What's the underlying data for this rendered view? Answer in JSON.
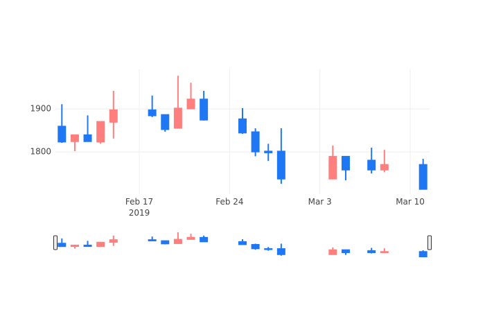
{
  "chart_data": {
    "type": "candlestick",
    "x": [
      "2019-02-11",
      "2019-02-12",
      "2019-02-13",
      "2019-02-14",
      "2019-02-15",
      "2019-02-18",
      "2019-02-19",
      "2019-02-20",
      "2019-02-21",
      "2019-02-22",
      "2019-02-25",
      "2019-02-26",
      "2019-02-27",
      "2019-02-28",
      "2019-03-04",
      "2019-03-05",
      "2019-03-07",
      "2019-03-08",
      "2019-03-11"
    ],
    "open": [
      1823,
      1840,
      1824,
      1871,
      1898,
      1884,
      1852,
      1902,
      1923,
      1874,
      1844,
      1800,
      1798,
      1737,
      1790,
      1758,
      1758,
      1771,
      1713
    ],
    "high": [
      1911,
      1840,
      1885,
      1871,
      1942,
      1931,
      1887,
      1977,
      1961,
      1942,
      1902,
      1855,
      1819,
      1855,
      1815,
      1790,
      1810,
      1805,
      1784
    ],
    "low": [
      1821,
      1802,
      1824,
      1819,
      1831,
      1881,
      1847,
      1855,
      1900,
      1873,
      1842,
      1790,
      1779,
      1726,
      1737,
      1734,
      1750,
      1753,
      1713
    ],
    "close": [
      1860,
      1824,
      1840,
      1823,
      1869,
      1898,
      1887,
      1855,
      1900,
      1923,
      1877,
      1847,
      1802,
      1802,
      1737,
      1790,
      1781,
      1758,
      1771
    ],
    "increasing_color": "#1f77f4",
    "decreasing_color": "#ff7f7f",
    "xlim": [
      "2019-02-10T12:00",
      "2019-03-11T12:00"
    ],
    "xticks": [
      {
        "value": "2019-02-17",
        "label": "Feb 17\n2019"
      },
      {
        "value": "2019-02-24",
        "label": "Feb 24"
      },
      {
        "value": "2019-03-03",
        "label": "Mar 3"
      },
      {
        "value": "2019-03-10",
        "label": "Mar 10"
      }
    ],
    "ylim": [
      1702,
      1992
    ],
    "yticks": [
      1800,
      1900
    ],
    "grid": true,
    "rangeslider": true
  }
}
